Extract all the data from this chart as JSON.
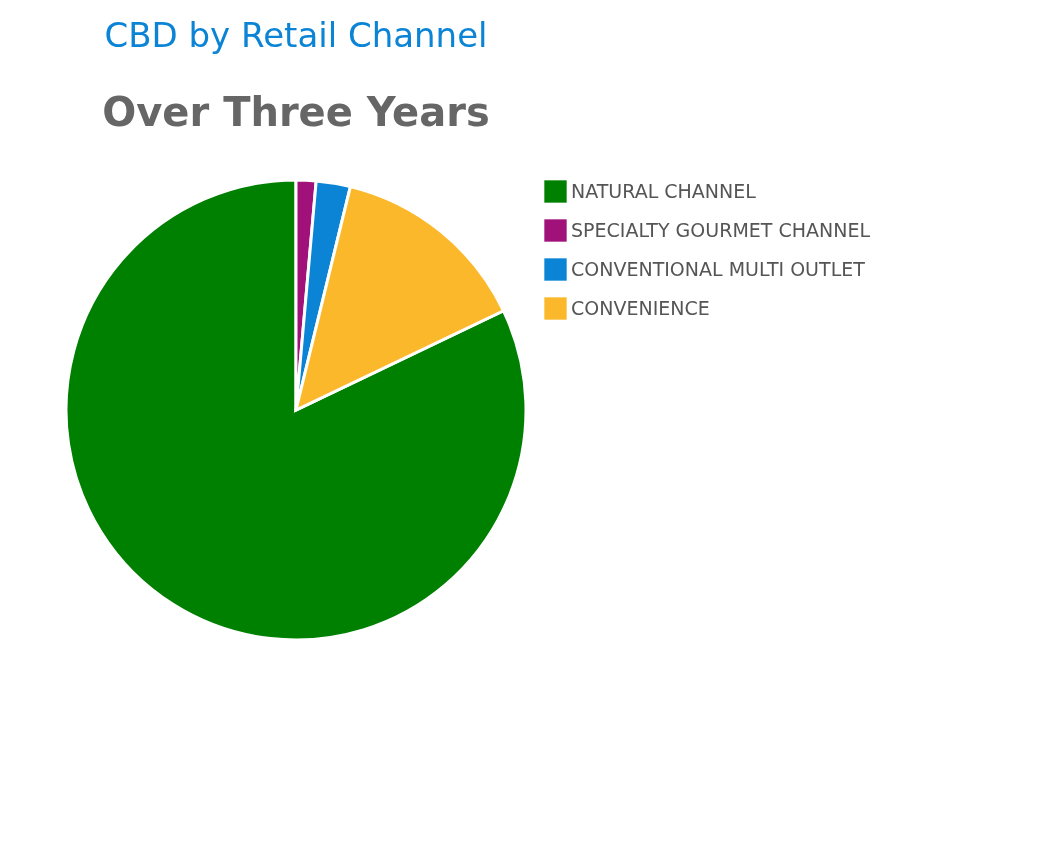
{
  "chart_data": {
    "type": "pie",
    "title": "CBD by Retail Channel",
    "subtitle": "Over Three Years",
    "categories": [
      "NATURAL CHANNEL",
      "SPECIALTY GOURMET CHANNEL",
      "CONVENTIONAL MULTI  OUTLET",
      "CONVENIENCE"
    ],
    "values": [
      82.1,
      1.4,
      2.4,
      14.1
    ],
    "colors": [
      "#008000",
      "#a0127a",
      "#0b84d6",
      "#fbb82b"
    ],
    "legend": "right"
  }
}
